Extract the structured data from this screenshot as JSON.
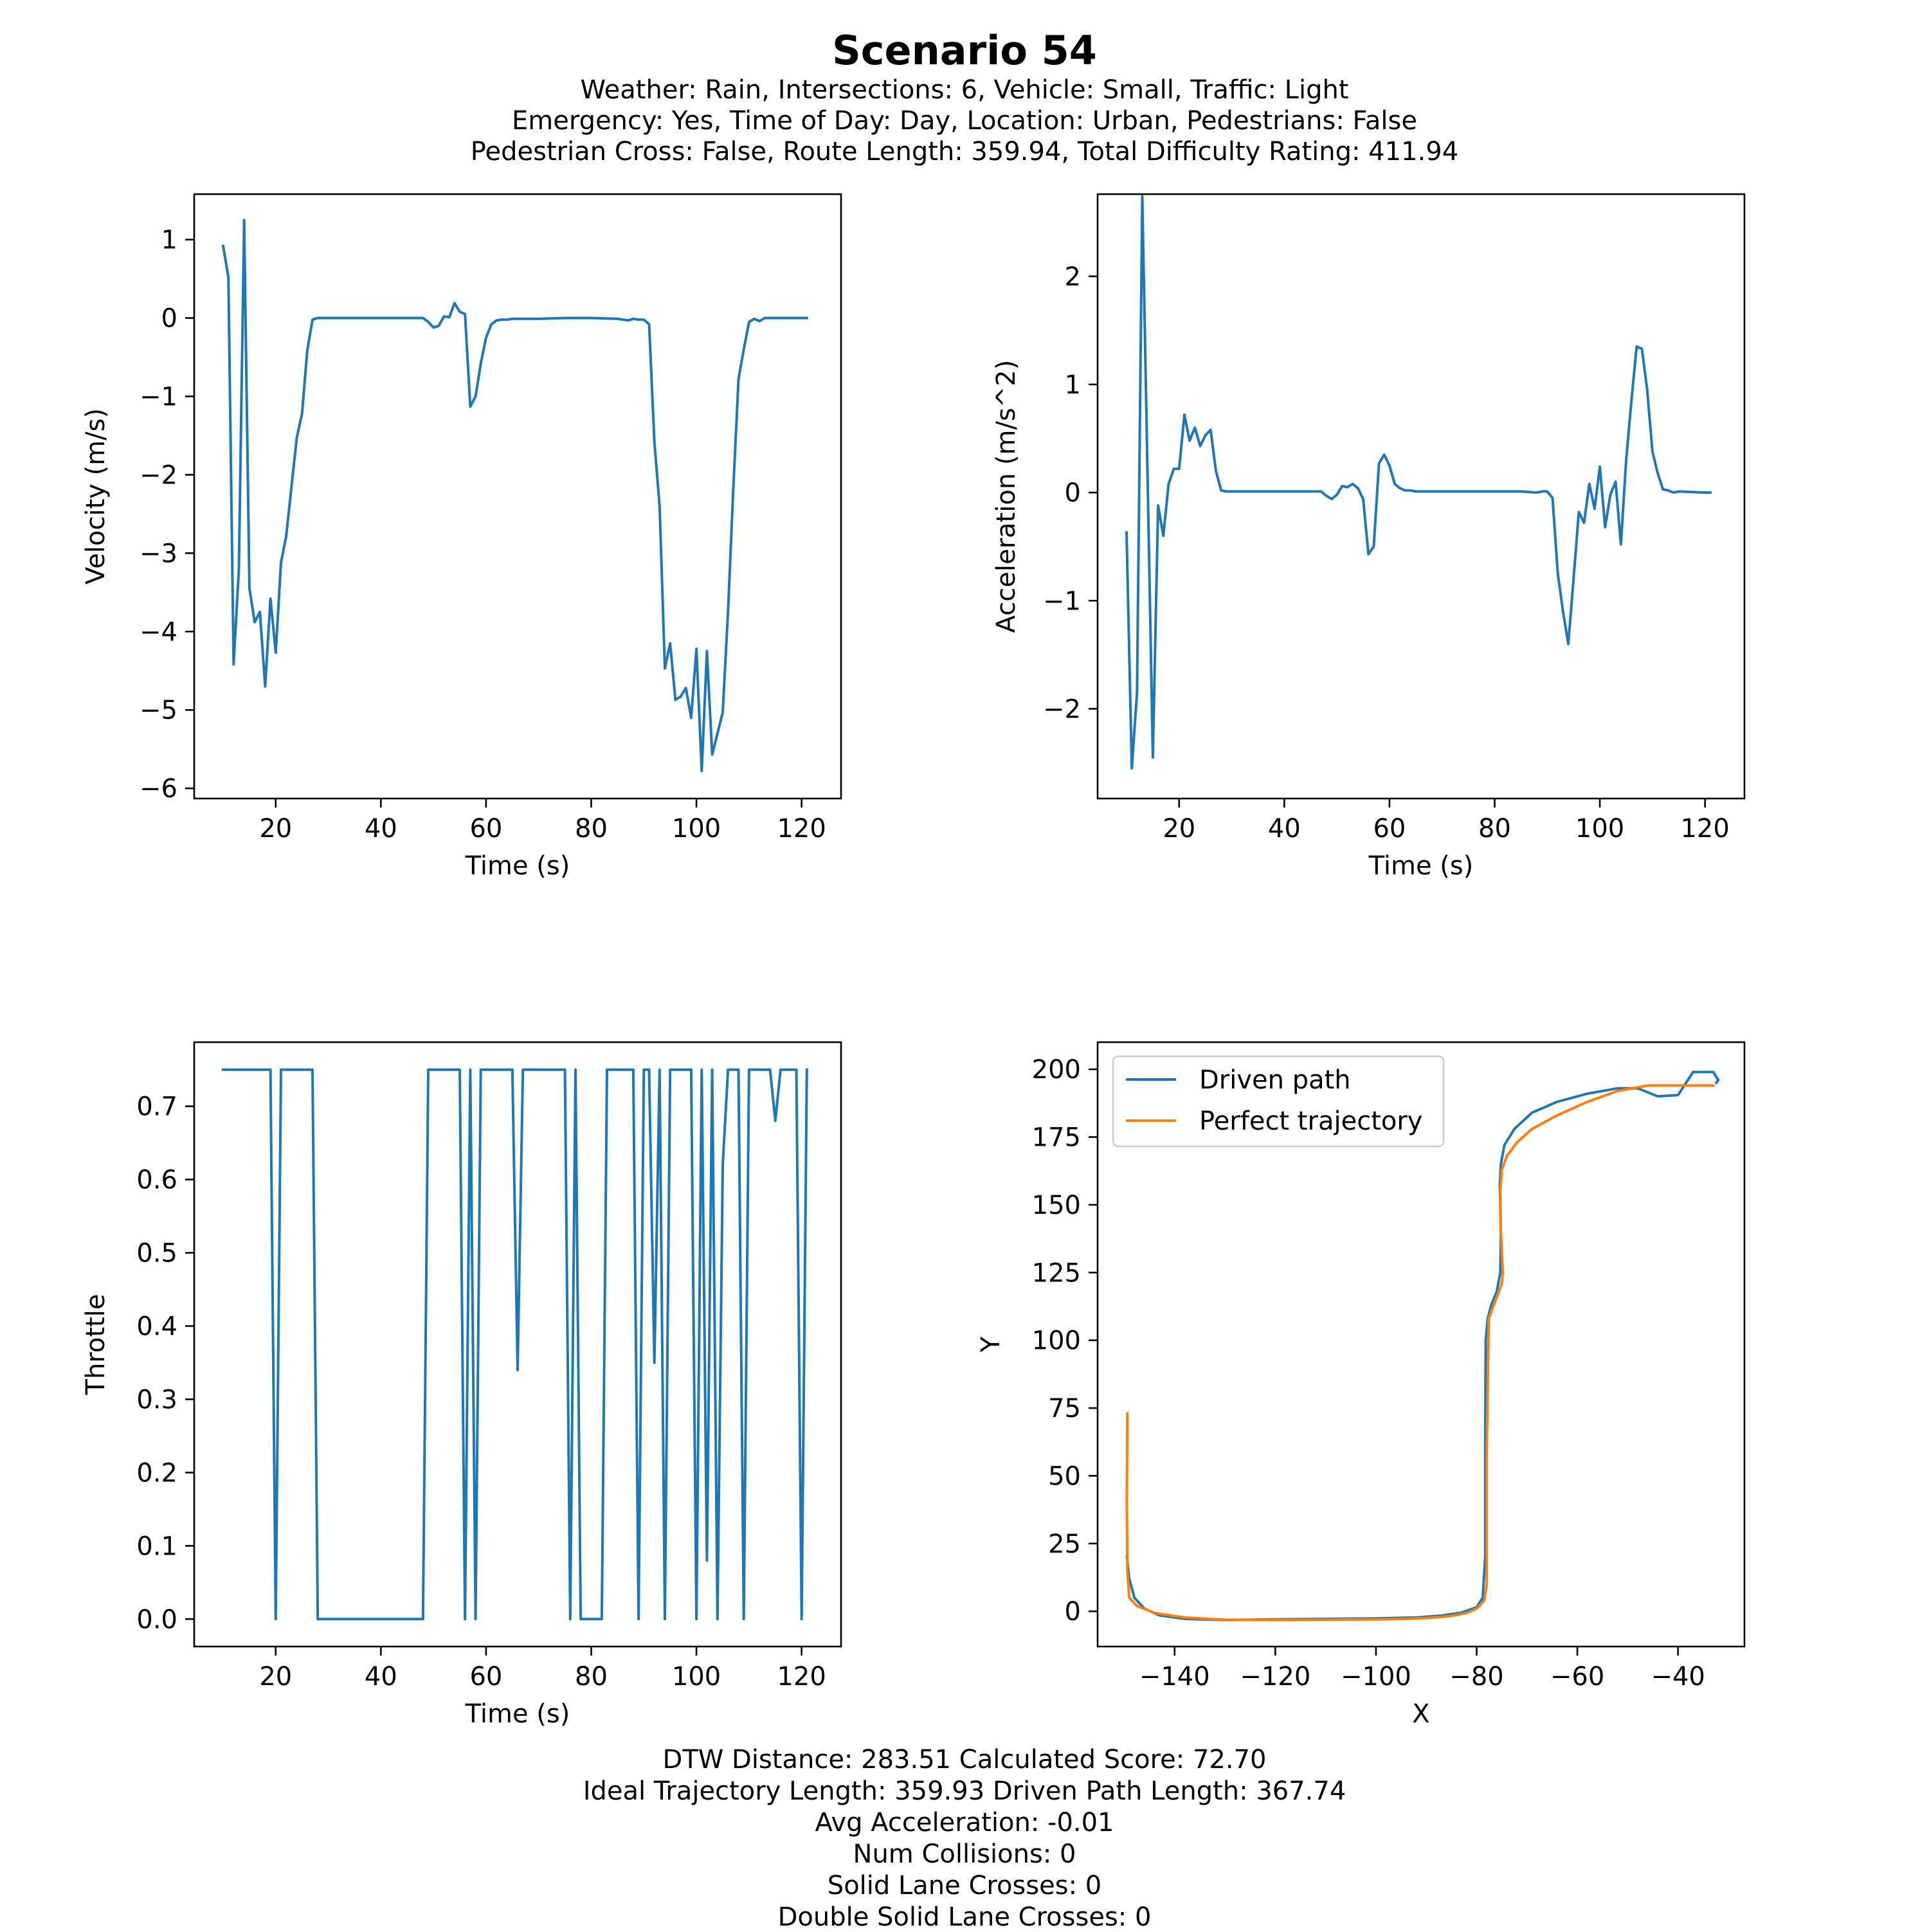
{
  "title": "Scenario 54",
  "subtitle_lines": [
    "Weather: Rain, Intersections: 6, Vehicle: Small, Traffic: Light",
    "Emergency: Yes, Time of Day: Day, Location: Urban, Pedestrians: False",
    "Pedestrian Cross: False, Route Length: 359.94, Total Difficulty Rating: 411.94"
  ],
  "stats_lines": [
    "DTW Distance: 283.51  Calculated Score: 72.70",
    "Ideal Trajectory Length: 359.93   Driven Path Length: 367.74",
    "Avg Acceleration: -0.01",
    "Num Collisions: 0",
    "Solid Lane Crosses: 0",
    "Double Solid Lane Crosses: 0"
  ],
  "colors": {
    "series_blue": "#1f77b4",
    "series_orange": "#ff7f0e"
  },
  "chart_data": [
    {
      "type": "line",
      "xlabel": "Time (s)",
      "ylabel": "Velocity (m/s)",
      "xlim": [
        4.5,
        127.5
      ],
      "ylim": [
        -6.13,
        1.58
      ],
      "xticks": [
        20,
        40,
        60,
        80,
        100,
        120
      ],
      "yticks": [
        -6,
        -5,
        -4,
        -3,
        -2,
        -1,
        0,
        1
      ],
      "grid": false,
      "series": [
        {
          "x": [
            10,
            11,
            12,
            13,
            14,
            15,
            16,
            17,
            18,
            19,
            20,
            21,
            22,
            23,
            24,
            25,
            26,
            27,
            28,
            29,
            30,
            35,
            40,
            45,
            48,
            49,
            50,
            51,
            52,
            53,
            54,
            55,
            56,
            57,
            58,
            59,
            60,
            61,
            62,
            63,
            64,
            65,
            66,
            70,
            75,
            80,
            85,
            87,
            88,
            89,
            90,
            91,
            92,
            93,
            94,
            95,
            96,
            97,
            98,
            99,
            100,
            101,
            102,
            103,
            104,
            105,
            106,
            107,
            108,
            109,
            110,
            111,
            112,
            113,
            114,
            115,
            120,
            121
          ],
          "y": [
            0.92,
            0.52,
            -4.42,
            -3.2,
            1.25,
            -3.45,
            -3.88,
            -3.75,
            -4.7,
            -3.58,
            -4.27,
            -3.12,
            -2.78,
            -2.15,
            -1.53,
            -1.22,
            -0.42,
            -0.02,
            0.0,
            0.0,
            0.0,
            0.0,
            0.0,
            0.0,
            0.0,
            -0.05,
            -0.12,
            -0.1,
            0.02,
            0.01,
            0.19,
            0.08,
            0.05,
            -1.13,
            -1.0,
            -0.58,
            -0.25,
            -0.08,
            -0.03,
            -0.02,
            -0.02,
            -0.01,
            -0.01,
            -0.01,
            0.0,
            0.0,
            -0.01,
            -0.03,
            -0.01,
            -0.02,
            -0.02,
            -0.08,
            -1.58,
            -2.4,
            -4.47,
            -4.15,
            -4.87,
            -4.83,
            -4.72,
            -5.1,
            -4.22,
            -5.78,
            -4.25,
            -5.57,
            -5.3,
            -5.03,
            -3.75,
            -2.2,
            -0.78,
            -0.4,
            -0.05,
            -0.01,
            -0.04,
            0.0,
            0.0,
            0.0,
            0.0,
            0.0
          ]
        }
      ]
    },
    {
      "type": "line",
      "xlabel": "Time (s)",
      "ylabel": "Acceleration (m/s^2)",
      "xlim": [
        4.5,
        127.5
      ],
      "ylim": [
        -2.83,
        2.76
      ],
      "xticks": [
        20,
        40,
        60,
        80,
        100,
        120
      ],
      "yticks": [
        -2,
        -1,
        0,
        1,
        2
      ],
      "grid": false,
      "series": [
        {
          "x": [
            10,
            11,
            12,
            13,
            14,
            15,
            16,
            17,
            18,
            19,
            20,
            21,
            22,
            23,
            24,
            25,
            26,
            27,
            28,
            29,
            30,
            35,
            40,
            45,
            47,
            48,
            49,
            50,
            51,
            52,
            53,
            54,
            55,
            56,
            57,
            58,
            59,
            60,
            61,
            62,
            63,
            64,
            65,
            66,
            70,
            75,
            80,
            85,
            88,
            89,
            90,
            91,
            92,
            93,
            94,
            95,
            96,
            97,
            98,
            99,
            100,
            101,
            102,
            103,
            104,
            105,
            106,
            107,
            108,
            109,
            110,
            111,
            112,
            113,
            114,
            115,
            120,
            121
          ],
          "y": [
            -0.37,
            -2.55,
            -1.85,
            2.74,
            0.15,
            -2.45,
            -0.12,
            -0.4,
            0.08,
            0.22,
            0.22,
            0.72,
            0.48,
            0.6,
            0.43,
            0.53,
            0.58,
            0.2,
            0.02,
            0.01,
            0.01,
            0.01,
            0.01,
            0.01,
            0.01,
            -0.03,
            -0.06,
            -0.02,
            0.06,
            0.05,
            0.08,
            0.04,
            -0.06,
            -0.57,
            -0.5,
            0.27,
            0.35,
            0.25,
            0.08,
            0.04,
            0.02,
            0.02,
            0.01,
            0.01,
            0.01,
            0.01,
            0.01,
            0.01,
            0.0,
            0.01,
            0.01,
            -0.05,
            -0.75,
            -1.1,
            -1.4,
            -0.8,
            -0.18,
            -0.28,
            0.08,
            -0.15,
            0.24,
            -0.32,
            -0.02,
            0.1,
            -0.48,
            0.3,
            0.85,
            1.35,
            1.33,
            0.95,
            0.38,
            0.18,
            0.03,
            0.02,
            0.0,
            0.01,
            0.0,
            0.0
          ]
        }
      ]
    },
    {
      "type": "line",
      "xlabel": "Time (s)",
      "ylabel": "Throttle",
      "xlim": [
        4.5,
        127.5
      ],
      "ylim": [
        -0.0375,
        0.7875
      ],
      "xticks": [
        20,
        40,
        60,
        80,
        100,
        120
      ],
      "yticks": [
        0.0,
        0.1,
        0.2,
        0.3,
        0.4,
        0.5,
        0.6,
        0.7
      ],
      "grid": false,
      "series": [
        {
          "x": [
            10,
            19,
            20,
            21,
            27,
            28,
            48,
            49,
            55,
            56,
            57,
            58,
            59,
            65,
            66,
            67,
            75,
            76,
            77,
            78,
            82,
            83,
            88,
            89,
            90,
            91,
            92,
            93,
            94,
            95,
            99,
            100,
            101,
            102,
            103,
            104,
            105,
            106,
            108,
            109,
            110,
            111,
            114,
            115,
            116,
            117,
            119,
            120,
            121
          ],
          "y": [
            0.75,
            0.75,
            0.0,
            0.75,
            0.75,
            0.0,
            0.0,
            0.75,
            0.75,
            0.0,
            0.75,
            0.0,
            0.75,
            0.75,
            0.34,
            0.75,
            0.75,
            0.0,
            0.75,
            0.0,
            0.0,
            0.75,
            0.75,
            0.0,
            0.75,
            0.75,
            0.35,
            0.75,
            0.0,
            0.75,
            0.75,
            0.0,
            0.75,
            0.08,
            0.75,
            0.0,
            0.62,
            0.75,
            0.75,
            0.0,
            0.75,
            0.75,
            0.75,
            0.68,
            0.75,
            0.75,
            0.75,
            0.0,
            0.75
          ]
        }
      ]
    },
    {
      "type": "line",
      "xlabel": "X",
      "ylabel": "Y",
      "xlim": [
        -155.3,
        -26.8
      ],
      "ylim": [
        -13.0,
        210.0
      ],
      "xticks": [
        -140,
        -120,
        -100,
        -80,
        -60,
        -40
      ],
      "yticks": [
        0,
        25,
        50,
        75,
        100,
        125,
        150,
        175,
        200
      ],
      "grid": false,
      "legend_position": "upper-left",
      "series": [
        {
          "name": "Driven path",
          "x": [
            -149.5,
            -149,
            -148,
            -146,
            -143,
            -138,
            -130,
            -120,
            -110,
            -100,
            -92,
            -87,
            -83,
            -80,
            -78.8,
            -78.3,
            -78.3,
            -78.2,
            -77.8,
            -77.1,
            -76,
            -75.3,
            -75.2,
            -75.3,
            -75.4,
            -75.2,
            -74.5,
            -72.5,
            -69,
            -64,
            -58,
            -52,
            -48,
            -44,
            -40,
            -37,
            -33,
            -32,
            -32.4
          ],
          "y": [
            20,
            12,
            5,
            1,
            -1.5,
            -2.8,
            -3.2,
            -3.0,
            -2.8,
            -2.6,
            -2.3,
            -1.6,
            -0.5,
            1.5,
            5.0,
            20,
            60,
            100,
            108,
            113,
            118,
            125,
            140,
            150,
            157,
            165,
            172,
            178,
            184,
            188,
            191,
            193,
            193,
            190,
            190.5,
            199,
            199,
            196,
            195
          ]
        },
        {
          "name": "Perfect trajectory",
          "x": [
            -149.4,
            -149.5,
            -149.4,
            -149.0,
            -147.5,
            -144,
            -138,
            -130,
            -120,
            -110,
            -100,
            -94,
            -89,
            -85,
            -82,
            -80,
            -78.5,
            -78.0,
            -78.0,
            -77.6,
            -75.0,
            -74.8,
            -75.2,
            -75.3,
            -75.0,
            -74.0,
            -72,
            -69,
            -64,
            -58,
            -52,
            -46,
            -40,
            -33
          ],
          "y": [
            73,
            40,
            15,
            5.0,
            2.0,
            -0.6,
            -2.3,
            -3.1,
            -3.2,
            -3.1,
            -3.0,
            -2.8,
            -2.4,
            -1.7,
            -0.6,
            1.0,
            4.0,
            10,
            60,
            108,
            121,
            125,
            140,
            155,
            163,
            168,
            173,
            178,
            183,
            188,
            192,
            194,
            194,
            194
          ]
        }
      ]
    }
  ]
}
